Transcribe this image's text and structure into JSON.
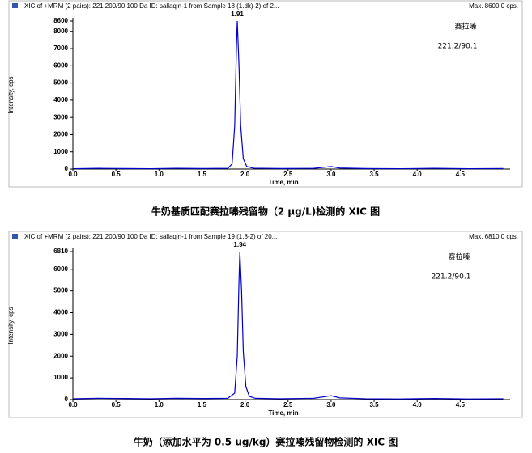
{
  "chart_data": [
    {
      "type": "line",
      "header": "XIC of +MRM (2 pairs): 221.200/90.100 Da ID: sallaqin-1 from Sample 18 (1.dk)-2) of 2...",
      "max_label": "Max. 8600.0 cps.",
      "xlabel": "Time, min",
      "ylabel": "Intensity, cps",
      "annotations": [
        "赛拉嗪",
        "221.2/90.1"
      ],
      "peak_x": 1.91,
      "caption": "牛奶基质匹配赛拉嗪残留物（2 μg/L)检测的 XIC 图",
      "x": [
        0,
        0.3,
        0.6,
        0.9,
        1.2,
        1.5,
        1.8,
        1.85,
        1.88,
        1.9,
        1.91,
        1.93,
        1.95,
        1.98,
        2.02,
        2.1,
        2.4,
        2.8,
        2.95,
        3.0,
        3.1,
        3.4,
        3.8,
        4.2,
        4.6,
        5.0
      ],
      "values": [
        20,
        40,
        30,
        20,
        40,
        30,
        40,
        300,
        2500,
        7000,
        8600,
        6000,
        2500,
        600,
        150,
        50,
        30,
        40,
        120,
        150,
        60,
        30,
        20,
        40,
        20,
        30
      ],
      "color": "#0000cc",
      "xlim": [
        0,
        5.08
      ],
      "ylim": [
        0,
        8600
      ],
      "xticks": [
        {
          "value": 0,
          "label": "0.0"
        },
        {
          "value": 0.5,
          "label": "0.5"
        },
        {
          "value": 1,
          "label": "1.0"
        },
        {
          "value": 1.5,
          "label": "1.5"
        },
        {
          "value": 2,
          "label": "2.0"
        },
        {
          "value": 2.5,
          "label": "2.5"
        },
        {
          "value": 3,
          "label": "3.0"
        },
        {
          "value": 3.5,
          "label": "3.5"
        },
        {
          "value": 4,
          "label": "4.0"
        },
        {
          "value": 4.5,
          "label": "4.5"
        }
      ],
      "yticks": [
        0,
        1000,
        2000,
        3000,
        4000,
        5000,
        6000,
        7000,
        8000,
        8600
      ]
    },
    {
      "type": "line",
      "header": "XIC of +MRM (2 pairs): 221.200/90.100 Da ID: sallaqin-1 from Sample 19 (1.8-2) of 20...",
      "max_label": "Max. 6810.0 cps.",
      "xlabel": "Time, min",
      "ylabel": "Intensity, cps",
      "annotations": [
        "赛拉嗪",
        "221.2/90.1"
      ],
      "peak_x": 1.94,
      "caption": "牛奶（添加水平为 0.5 ug/kg）赛拉嗪残留物检测的 XIC 图",
      "x": [
        0,
        0.3,
        0.6,
        0.9,
        1.2,
        1.5,
        1.8,
        1.88,
        1.91,
        1.93,
        1.94,
        1.96,
        1.98,
        2.01,
        2.05,
        2.12,
        2.4,
        2.8,
        2.95,
        3.0,
        3.1,
        3.4,
        3.8,
        4.2,
        4.6,
        5.0
      ],
      "values": [
        40,
        60,
        50,
        40,
        60,
        50,
        60,
        300,
        2000,
        5500,
        6810,
        5000,
        2200,
        600,
        150,
        60,
        40,
        60,
        150,
        180,
        80,
        40,
        30,
        50,
        30,
        40
      ],
      "color": "#0000cc",
      "xlim": [
        0,
        5.08
      ],
      "ylim": [
        0,
        6810
      ],
      "xticks": [
        {
          "value": 0,
          "label": "0.0"
        },
        {
          "value": 0.5,
          "label": "0.5"
        },
        {
          "value": 1,
          "label": "1.0"
        },
        {
          "value": 1.5,
          "label": "1.5"
        },
        {
          "value": 2,
          "label": "2.0"
        },
        {
          "value": 2.5,
          "label": "2.5"
        },
        {
          "value": 3,
          "label": "3.0"
        },
        {
          "value": 3.5,
          "label": "3.5"
        },
        {
          "value": 4,
          "label": "4.0"
        },
        {
          "value": 4.5,
          "label": "4.5"
        }
      ],
      "yticks": [
        0,
        1000,
        2000,
        3000,
        4000,
        5000,
        6000,
        6810
      ]
    }
  ]
}
